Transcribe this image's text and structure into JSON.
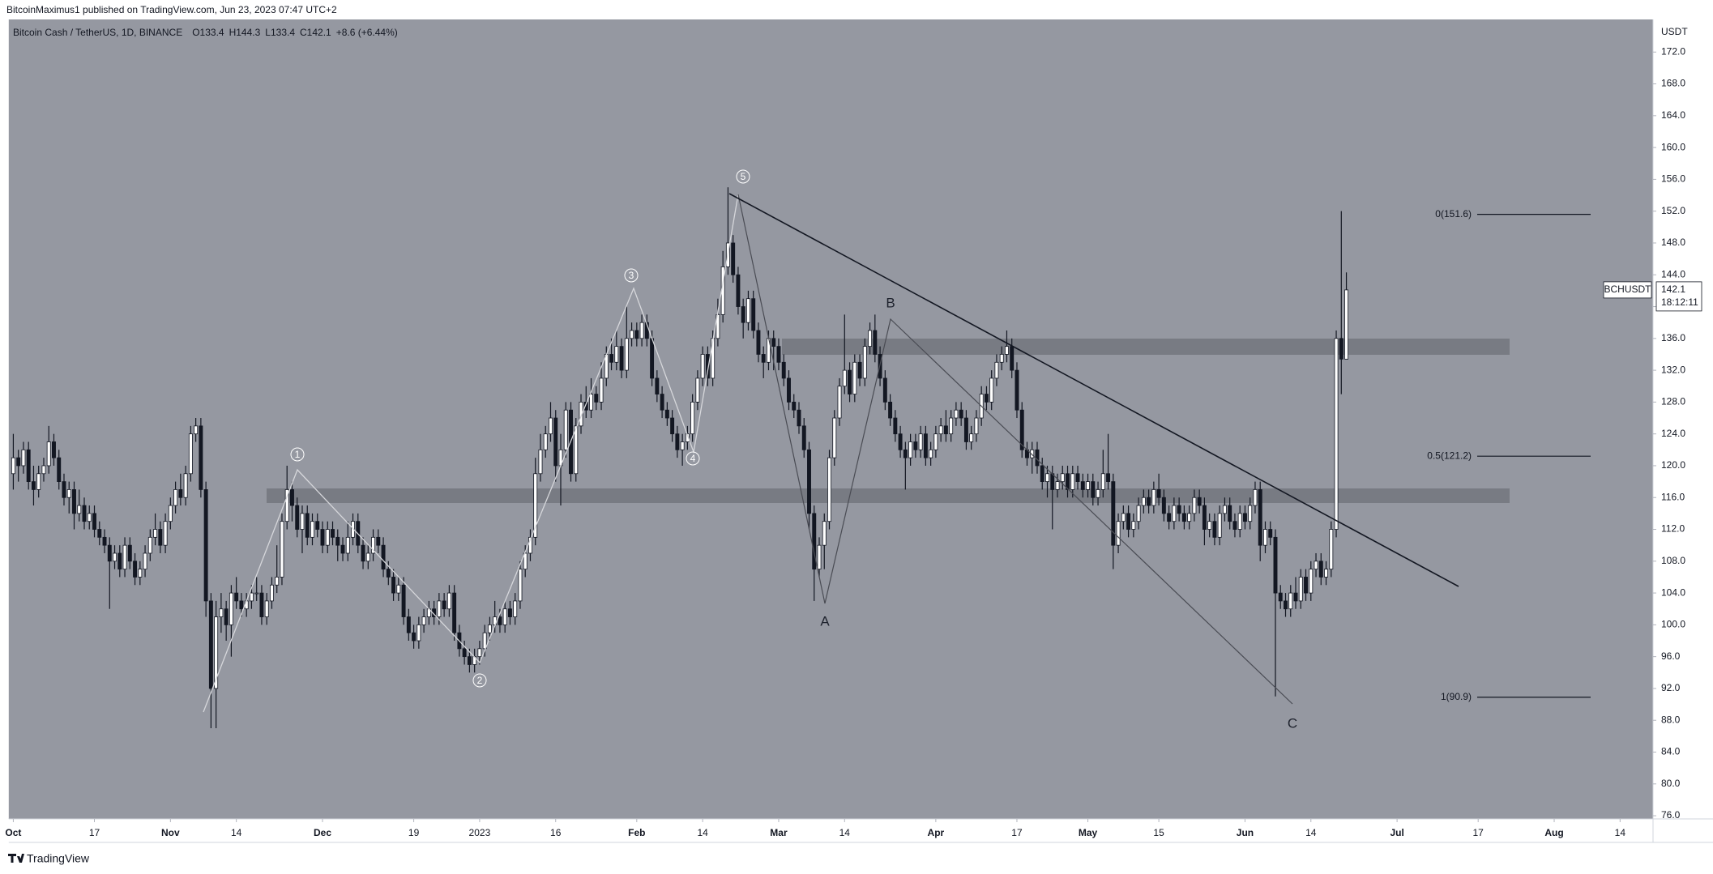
{
  "published": "BitcoinMaximus1 published on TradingView.com, Jun 23, 2023 07:47 UTC+2",
  "footer": "TradingView",
  "chart_data": {
    "type": "candlestick",
    "title": "Bitcoin Cash / TetherUS, 1D, BINANCE",
    "ohlc_labels": [
      "O",
      "H",
      "L",
      "C"
    ],
    "change": "+8.6 (+6.44%)",
    "currency": "USDT",
    "symbol": "BCHUSDT",
    "countdown": "18:12:11",
    "grid": false,
    "up_color": "#ffffff",
    "down_color": "#131722",
    "background": "#9598a1",
    "xlim": [
      -0.9,
      323.5
    ],
    "xticks": [
      {
        "value": 0,
        "label": "Oct"
      },
      {
        "value": 16,
        "label": "17"
      },
      {
        "value": 31,
        "label": "Nov"
      },
      {
        "value": 44,
        "label": "14"
      },
      {
        "value": 61,
        "label": "Dec"
      },
      {
        "value": 79,
        "label": "19"
      },
      {
        "value": 92,
        "label": "2023"
      },
      {
        "value": 107,
        "label": "16"
      },
      {
        "value": 123,
        "label": "Feb"
      },
      {
        "value": 136,
        "label": "14"
      },
      {
        "value": 151,
        "label": "Mar"
      },
      {
        "value": 164,
        "label": "14"
      },
      {
        "value": 182,
        "label": "Apr"
      },
      {
        "value": 198,
        "label": "17"
      },
      {
        "value": 212,
        "label": "May"
      },
      {
        "value": 226,
        "label": "15"
      },
      {
        "value": 243,
        "label": "Jun"
      },
      {
        "value": 256,
        "label": "14"
      },
      {
        "value": 273,
        "label": "Jul"
      },
      {
        "value": 289,
        "label": "17"
      },
      {
        "value": 304,
        "label": "Aug"
      },
      {
        "value": 317,
        "label": "14"
      }
    ],
    "ylim": [
      75.6,
      176.1
    ],
    "yticks": [
      {
        "value": 76,
        "label": "76.0"
      },
      {
        "value": 80,
        "label": "80.0"
      },
      {
        "value": 84,
        "label": "84.0"
      },
      {
        "value": 88,
        "label": "88.0"
      },
      {
        "value": 92,
        "label": "92.0"
      },
      {
        "value": 96,
        "label": "96.0"
      },
      {
        "value": 100,
        "label": "100.0"
      },
      {
        "value": 104,
        "label": "104.0"
      },
      {
        "value": 108,
        "label": "108.0"
      },
      {
        "value": 112,
        "label": "112.0"
      },
      {
        "value": 116,
        "label": "116.0"
      },
      {
        "value": 120,
        "label": "120.0"
      },
      {
        "value": 124,
        "label": "124.0"
      },
      {
        "value": 128,
        "label": "128.0"
      },
      {
        "value": 132,
        "label": "132.0"
      },
      {
        "value": 136,
        "label": "136.0"
      },
      {
        "value": 140,
        "label": "140.0"
      },
      {
        "value": 144,
        "label": "144.0"
      },
      {
        "value": 148,
        "label": "148.0"
      },
      {
        "value": 152,
        "label": "152.0"
      },
      {
        "value": 156,
        "label": "156.0"
      },
      {
        "value": 160,
        "label": "160.0"
      },
      {
        "value": 164,
        "label": "164.0"
      },
      {
        "value": 168,
        "label": "168.0"
      },
      {
        "value": 172,
        "label": "172.0"
      }
    ],
    "open": [
      119,
      121,
      120,
      122,
      118,
      117,
      119,
      120,
      123,
      121,
      118,
      116,
      117,
      114,
      115,
      113,
      114,
      112,
      111,
      110,
      108,
      109,
      107,
      110,
      108,
      106,
      107,
      109,
      111,
      112,
      110,
      113,
      115,
      117,
      116,
      119,
      124,
      125,
      117,
      103,
      92,
      101,
      102,
      100,
      104,
      103,
      102,
      103,
      104,
      104,
      101,
      103,
      105,
      106,
      113,
      117,
      115,
      112,
      114,
      111,
      113,
      112,
      110,
      112,
      111,
      110,
      109,
      111,
      113,
      110,
      108,
      109,
      111,
      110,
      107,
      106,
      104,
      105,
      101,
      99,
      98,
      100,
      101,
      102,
      101,
      103,
      102,
      104,
      99,
      97,
      96,
      95,
      96,
      97,
      99,
      100,
      101,
      100,
      102,
      101,
      103,
      107,
      109,
      111,
      119,
      122,
      124,
      126,
      120,
      122,
      127,
      119,
      125,
      128,
      127,
      129,
      128,
      131,
      134,
      133,
      135,
      132,
      136,
      137,
      136,
      138,
      136,
      131,
      129,
      127,
      126,
      124,
      122,
      123,
      124,
      128,
      131,
      134,
      131,
      136,
      139,
      145,
      148,
      144,
      140,
      138,
      141,
      137,
      134,
      133,
      136,
      135,
      133,
      131,
      128,
      127,
      125,
      122,
      114,
      107,
      110,
      113,
      121,
      126,
      130,
      132,
      129,
      133,
      131,
      135,
      137,
      134,
      131,
      128,
      126,
      124,
      122,
      121,
      123,
      122,
      124,
      121,
      122,
      124,
      125,
      124,
      126,
      127,
      126,
      123,
      124,
      126,
      129,
      128,
      131,
      133,
      134,
      135,
      132,
      127,
      122,
      121,
      122,
      120,
      118,
      119,
      117,
      118,
      119,
      117,
      119,
      118,
      117,
      118,
      116,
      117,
      119,
      118,
      110,
      113,
      114,
      112,
      113,
      115,
      116,
      115,
      117,
      116,
      114,
      113,
      115,
      114,
      113,
      114,
      116,
      115,
      112,
      113,
      111,
      114,
      115,
      113,
      112,
      114,
      113,
      115,
      117,
      110,
      112,
      111,
      104,
      103,
      102,
      104,
      103,
      106,
      104,
      107,
      108,
      106,
      107,
      112,
      136,
      133.4
    ],
    "high": [
      124,
      122,
      123,
      123,
      120,
      120,
      121,
      125,
      124,
      122,
      119,
      118,
      118,
      117,
      116,
      115,
      115,
      113,
      112,
      111,
      110,
      110,
      111,
      111,
      109,
      108,
      110,
      112,
      114,
      113,
      114,
      116,
      118,
      119,
      120,
      125,
      126,
      126,
      118,
      104,
      103,
      104,
      103,
      105,
      106,
      104,
      104,
      105,
      106,
      105,
      104,
      106,
      110,
      114,
      120,
      118,
      116,
      115,
      115,
      114,
      114,
      113,
      113,
      113,
      112,
      111,
      113,
      114,
      114,
      111,
      110,
      112,
      112,
      111,
      108,
      107,
      106,
      106,
      102,
      100,
      101,
      102,
      103,
      103,
      104,
      104,
      105,
      105,
      100,
      98,
      97,
      97,
      98,
      100,
      101,
      103,
      102,
      103,
      103,
      104,
      108,
      110,
      112,
      121,
      124,
      125,
      128,
      127,
      124,
      128,
      128,
      126,
      129,
      130,
      131,
      130,
      133,
      135,
      136,
      137,
      136,
      140,
      138,
      138,
      139,
      139,
      137,
      132,
      130,
      128,
      127,
      125,
      124,
      125,
      129,
      132,
      135,
      135,
      137,
      141,
      147,
      155,
      149,
      145,
      141,
      142,
      142,
      138,
      135,
      137,
      137,
      136,
      134,
      132,
      129,
      128,
      126,
      123,
      115,
      111,
      114,
      122,
      127,
      131,
      139,
      133,
      134,
      134,
      136,
      138,
      139,
      135,
      132,
      129,
      127,
      125,
      123,
      124,
      124,
      125,
      125,
      123,
      125,
      126,
      127,
      127,
      128,
      128,
      127,
      125,
      127,
      130,
      130,
      132,
      134,
      135,
      137,
      136,
      133,
      128,
      123,
      123,
      123,
      121,
      120,
      120,
      119,
      120,
      120,
      120,
      120,
      119,
      119,
      119,
      118,
      122,
      124,
      119,
      114,
      115,
      115,
      114,
      116,
      117,
      117,
      118,
      119,
      117,
      115,
      116,
      116,
      115,
      115,
      117,
      117,
      116,
      114,
      114,
      115,
      116,
      116,
      114,
      115,
      115,
      116,
      118,
      118,
      113,
      113,
      112,
      105,
      104,
      105,
      106,
      107,
      107,
      108,
      109,
      109,
      108,
      113,
      137,
      152,
      144.3
    ],
    "low": [
      117,
      118,
      119,
      117,
      115,
      116,
      118,
      119,
      120,
      117,
      115,
      114,
      112,
      113,
      112,
      112,
      111,
      110,
      109,
      102,
      107,
      106,
      106,
      107,
      105,
      105,
      106,
      108,
      110,
      109,
      109,
      112,
      114,
      115,
      115,
      118,
      123,
      116,
      101,
      87,
      87,
      99,
      98,
      96,
      102,
      101,
      101,
      102,
      103,
      100,
      100,
      102,
      104,
      105,
      112,
      113,
      111,
      109,
      110,
      110,
      111,
      109,
      109,
      110,
      108,
      108,
      108,
      110,
      109,
      107,
      107,
      108,
      109,
      106,
      105,
      103,
      103,
      100,
      98,
      97,
      97,
      99,
      100,
      100,
      100,
      101,
      101,
      98,
      96,
      95,
      94,
      94,
      95,
      96,
      98,
      99,
      99,
      99,
      100,
      100,
      102,
      106,
      108,
      110,
      118,
      121,
      123,
      118,
      115,
      121,
      118,
      118,
      124,
      126,
      126,
      127,
      127,
      130,
      132,
      132,
      131,
      131,
      135,
      135,
      135,
      135,
      130,
      128,
      126,
      125,
      123,
      121,
      120,
      122,
      123,
      127,
      130,
      130,
      130,
      135,
      138,
      144,
      143,
      139,
      136,
      137,
      136,
      133,
      131,
      132,
      132,
      132,
      130,
      127,
      126,
      124,
      121,
      112,
      103,
      106,
      107,
      112,
      120,
      125,
      129,
      128,
      128,
      130,
      130,
      134,
      133,
      130,
      127,
      125,
      123,
      121,
      117,
      120,
      121,
      121,
      120,
      120,
      121,
      123,
      123,
      123,
      125,
      125,
      122,
      122,
      123,
      125,
      127,
      127,
      130,
      132,
      133,
      131,
      126,
      121,
      120,
      119,
      119,
      117,
      116,
      112,
      116,
      117,
      116,
      116,
      117,
      116,
      116,
      115,
      115,
      116,
      117,
      107,
      109,
      112,
      111,
      111,
      112,
      114,
      114,
      114,
      115,
      113,
      112,
      112,
      113,
      112,
      112,
      113,
      114,
      110,
      111,
      110,
      110,
      113,
      112,
      111,
      111,
      112,
      112,
      114,
      108,
      109,
      110,
      91,
      102,
      101,
      101,
      102,
      102,
      103,
      103,
      106,
      105,
      105,
      106,
      111,
      129,
      133.4
    ],
    "close": [
      121,
      120,
      122,
      118,
      117,
      119,
      120,
      123,
      121,
      118,
      116,
      117,
      114,
      115,
      113,
      114,
      112,
      111,
      110,
      108,
      109,
      107,
      110,
      108,
      106,
      107,
      109,
      111,
      112,
      110,
      113,
      115,
      117,
      116,
      119,
      124,
      125,
      117,
      103,
      92,
      101,
      102,
      100,
      104,
      103,
      102,
      103,
      104,
      104,
      101,
      103,
      105,
      106,
      113,
      117,
      115,
      112,
      114,
      111,
      113,
      112,
      110,
      112,
      111,
      110,
      109,
      111,
      113,
      110,
      108,
      109,
      111,
      110,
      107,
      106,
      104,
      105,
      101,
      99,
      98,
      100,
      101,
      102,
      101,
      103,
      102,
      104,
      99,
      97,
      96,
      95,
      96,
      97,
      99,
      100,
      101,
      100,
      102,
      101,
      103,
      107,
      109,
      111,
      119,
      122,
      124,
      126,
      120,
      122,
      127,
      119,
      125,
      128,
      127,
      129,
      128,
      131,
      134,
      133,
      135,
      132,
      136,
      137,
      136,
      138,
      136,
      131,
      129,
      127,
      126,
      124,
      122,
      123,
      124,
      128,
      131,
      134,
      131,
      136,
      139,
      145,
      148,
      144,
      140,
      138,
      141,
      137,
      134,
      133,
      136,
      135,
      133,
      131,
      128,
      127,
      125,
      122,
      114,
      107,
      110,
      113,
      121,
      126,
      130,
      132,
      129,
      133,
      131,
      135,
      137,
      134,
      131,
      128,
      126,
      124,
      122,
      121,
      123,
      122,
      124,
      121,
      122,
      124,
      125,
      124,
      126,
      127,
      126,
      123,
      124,
      126,
      129,
      128,
      131,
      133,
      134,
      135,
      132,
      127,
      122,
      121,
      122,
      120,
      118,
      119,
      117,
      118,
      119,
      117,
      119,
      118,
      117,
      118,
      116,
      117,
      119,
      118,
      110,
      113,
      114,
      112,
      113,
      115,
      116,
      115,
      117,
      116,
      114,
      113,
      115,
      114,
      113,
      114,
      116,
      115,
      112,
      113,
      111,
      114,
      115,
      113,
      112,
      114,
      113,
      115,
      117,
      110,
      112,
      111,
      104,
      103,
      102,
      104,
      103,
      106,
      104,
      107,
      108,
      106,
      107,
      112,
      136,
      133.4,
      142.1
    ],
    "fib_levels": [
      {
        "value": 151.6,
        "label": "0(151.6)"
      },
      {
        "value": 121.2,
        "label": "0.5(121.2)"
      },
      {
        "value": 90.9,
        "label": "1(90.9)"
      }
    ],
    "annotations": {
      "waves": [
        "1",
        "2",
        "3",
        "4",
        "5"
      ],
      "abc": [
        "A",
        "B",
        "C"
      ]
    }
  }
}
